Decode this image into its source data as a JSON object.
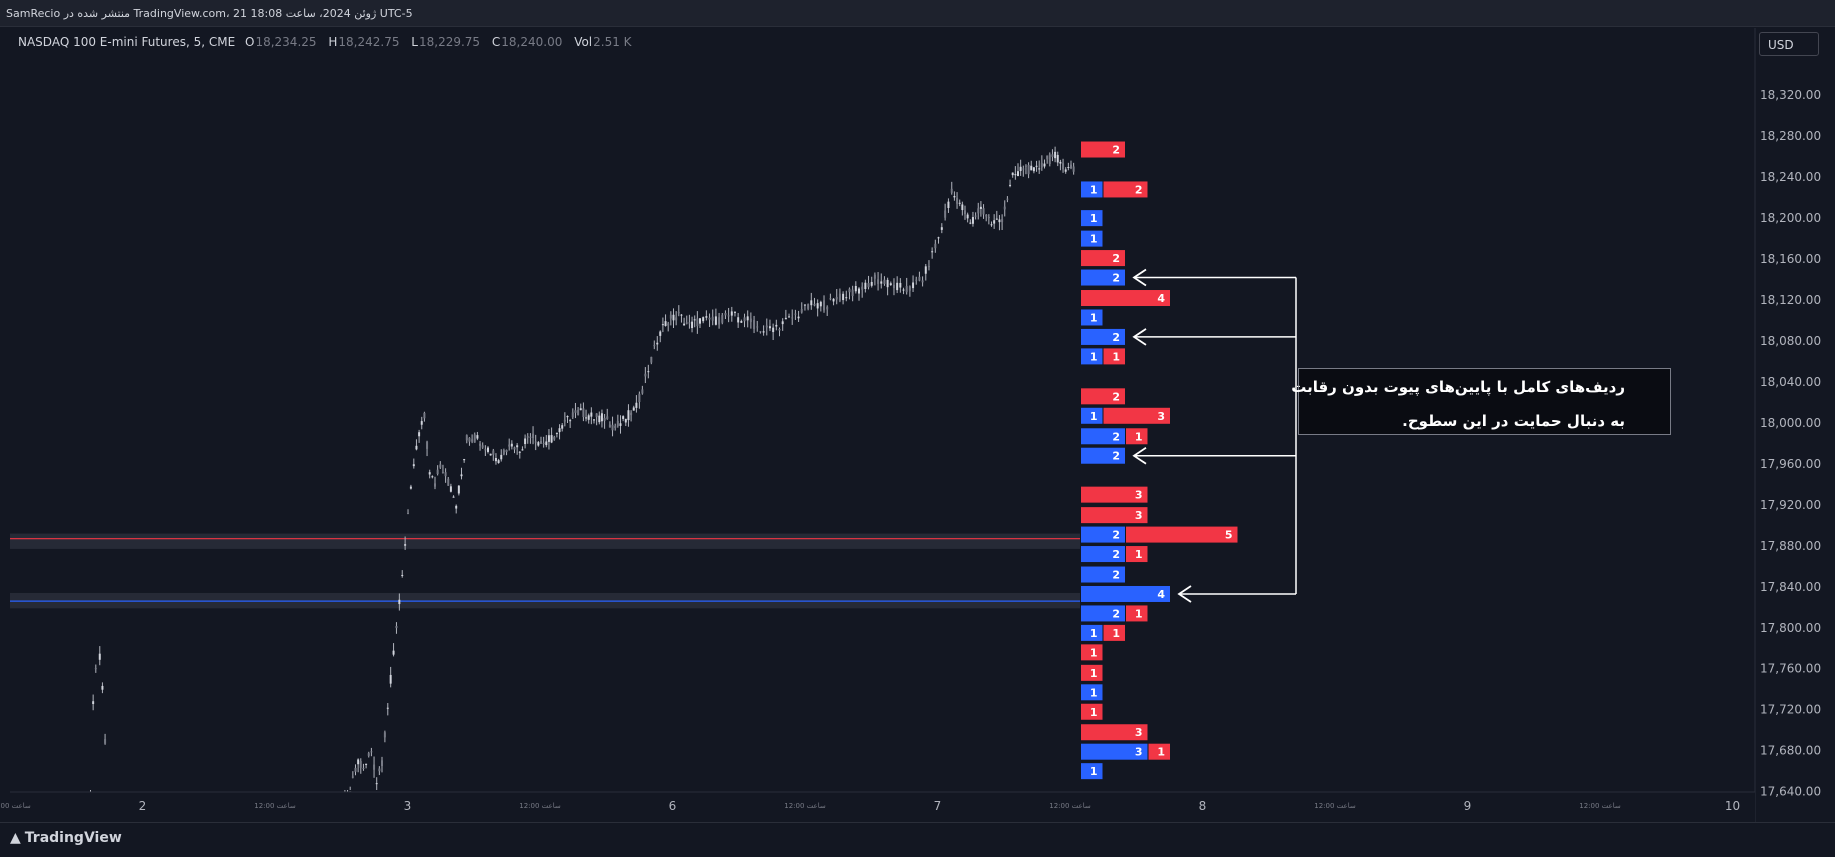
{
  "header": {
    "publish_text": "SamRecio منتشر شده در TradingView.com، 21 ژوئن 2024، ساعت 18:08 UTC-5"
  },
  "legend": {
    "symbol": "NASDAQ 100 E-mini Futures, 5, CME",
    "open_key": "O",
    "open_value": "18,234.25",
    "high_key": "H",
    "high_value": "18,242.75",
    "low_key": "L",
    "low_value": "18,229.75",
    "close_key": "C",
    "close_value": "18,240.00",
    "vol_key": "Vol",
    "vol_value": "2.51 K"
  },
  "currency": "USD",
  "annotation": {
    "line1": "ردیف‌های کامل با پایین‌های پیوت بدون رقابت",
    "line2": "به دنبال حمایت در این سطوح."
  },
  "brand": {
    "name": "TradingView"
  },
  "colors": {
    "background": "#131722",
    "bull": "#2962ff",
    "bear": "#f23645",
    "candle": "#b2b5be",
    "support_red": "#f23645",
    "support_blue": "#2962ff"
  },
  "chart_data": {
    "type": "candlestick",
    "ylim": [
      17620,
      18350
    ],
    "y_ticks": [
      {
        "value": 18320,
        "label": "18,320.00"
      },
      {
        "value": 18280,
        "label": "18,280.00"
      },
      {
        "value": 18240,
        "label": "18,240.00"
      },
      {
        "value": 18200,
        "label": "18,200.00"
      },
      {
        "value": 18160,
        "label": "18,160.00"
      },
      {
        "value": 18120,
        "label": "18,120.00"
      },
      {
        "value": 18080,
        "label": "18,080.00"
      },
      {
        "value": 18040,
        "label": "18,040.00"
      },
      {
        "value": 18000,
        "label": "18,000.00"
      },
      {
        "value": 17960,
        "label": "17,960.00"
      },
      {
        "value": 17920,
        "label": "17,920.00"
      },
      {
        "value": 17880,
        "label": "17,880.00"
      },
      {
        "value": 17840,
        "label": "17,840.00"
      },
      {
        "value": 17800,
        "label": "17,800.00"
      },
      {
        "value": 17760,
        "label": "17,760.00"
      },
      {
        "value": 17720,
        "label": "17,720.00"
      },
      {
        "value": 17680,
        "label": "17,680.00"
      },
      {
        "value": 17640,
        "label": "17,640.00"
      }
    ],
    "x_ticks": [
      {
        "pos": 0.0,
        "label": "ساعت 12:00",
        "small": true
      },
      {
        "pos": 0.5,
        "label": "2",
        "small": false
      },
      {
        "pos": 1.0,
        "label": "ساعت 12:00",
        "small": true
      },
      {
        "pos": 1.5,
        "label": "3",
        "small": false
      },
      {
        "pos": 2.0,
        "label": "ساعت 12:00",
        "small": true
      },
      {
        "pos": 2.5,
        "label": "6",
        "small": false
      },
      {
        "pos": 3.0,
        "label": "ساعت 12:00",
        "small": true
      },
      {
        "pos": 3.5,
        "label": "7",
        "small": false
      },
      {
        "pos": 4.0,
        "label": "ساعت 12:00",
        "small": true
      },
      {
        "pos": 4.5,
        "label": "8",
        "small": false
      },
      {
        "pos": 5.0,
        "label": "ساعت 12:00",
        "small": true
      },
      {
        "pos": 5.5,
        "label": "9",
        "small": false
      },
      {
        "pos": 6.0,
        "label": "ساعت 12:00",
        "small": true
      },
      {
        "pos": 6.5,
        "label": "10",
        "small": false
      }
    ],
    "price_path": [
      [
        0.3,
        17620
      ],
      [
        0.31,
        17730
      ],
      [
        0.32,
        17760
      ],
      [
        0.335,
        17770
      ],
      [
        0.345,
        17740
      ],
      [
        0.355,
        17690
      ],
      [
        0.37,
        17620
      ],
      [
        1.26,
        17620
      ],
      [
        1.29,
        17650
      ],
      [
        1.31,
        17670
      ],
      [
        1.33,
        17660
      ],
      [
        1.36,
        17680
      ],
      [
        1.38,
        17650
      ],
      [
        1.4,
        17670
      ],
      [
        1.52,
        17960
      ],
      [
        1.54,
        17990
      ],
      [
        1.56,
        18005
      ],
      [
        1.58,
        17950
      ],
      [
        1.6,
        17940
      ],
      [
        1.62,
        17960
      ],
      [
        1.64,
        17950
      ],
      [
        1.66,
        17935
      ],
      [
        1.68,
        17920
      ],
      [
        1.7,
        17950
      ],
      [
        1.72,
        17985
      ],
      [
        1.76,
        17985
      ],
      [
        1.8,
        17975
      ],
      [
        1.84,
        17965
      ],
      [
        1.88,
        17980
      ],
      [
        1.92,
        17975
      ],
      [
        1.96,
        17990
      ],
      [
        2.0,
        17980
      ],
      [
        2.04,
        17985
      ],
      [
        2.08,
        17995
      ],
      [
        2.12,
        18010
      ],
      [
        2.16,
        18010
      ],
      [
        2.2,
        18005
      ],
      [
        2.24,
        18005
      ],
      [
        2.28,
        17995
      ],
      [
        2.32,
        18005
      ],
      [
        2.36,
        18015
      ],
      [
        2.45,
        18090
      ],
      [
        2.48,
        18100
      ],
      [
        2.52,
        18105
      ],
      [
        2.56,
        18095
      ],
      [
        2.6,
        18100
      ],
      [
        2.66,
        18100
      ],
      [
        2.72,
        18105
      ],
      [
        2.78,
        18100
      ],
      [
        2.84,
        18090
      ],
      [
        2.9,
        18095
      ],
      [
        2.96,
        18105
      ],
      [
        3.02,
        18115
      ],
      [
        3.08,
        18115
      ],
      [
        3.14,
        18125
      ],
      [
        3.2,
        18130
      ],
      [
        3.26,
        18140
      ],
      [
        3.32,
        18135
      ],
      [
        3.38,
        18130
      ],
      [
        3.44,
        18140
      ],
      [
        3.5,
        18180
      ],
      [
        3.55,
        18225
      ],
      [
        3.58,
        18215
      ],
      [
        3.62,
        18195
      ],
      [
        3.66,
        18210
      ],
      [
        3.7,
        18195
      ],
      [
        3.74,
        18200
      ],
      [
        3.78,
        18240
      ],
      [
        3.82,
        18250
      ],
      [
        3.86,
        18245
      ],
      [
        3.9,
        18255
      ],
      [
        3.94,
        18260
      ],
      [
        3.98,
        18250
      ],
      [
        4.02,
        18245
      ]
    ],
    "support_zones": [
      {
        "price_low": 17877,
        "price_high": 17892,
        "line": 17887,
        "color": "red"
      },
      {
        "price_low": 17819,
        "price_high": 17834,
        "line": 17826,
        "color": "blue"
      }
    ],
    "footprint_rows": [
      {
        "price": 18267,
        "bid": 0,
        "ask": 2
      },
      {
        "price": 18228,
        "bid": 1,
        "ask": 2
      },
      {
        "price": 18200,
        "bid": 1,
        "ask": 0
      },
      {
        "price": 18180,
        "bid": 1,
        "ask": 0
      },
      {
        "price": 18161,
        "bid": 0,
        "ask": 2
      },
      {
        "price": 18142,
        "bid": 2,
        "ask": 0
      },
      {
        "price": 18122,
        "bid": 0,
        "ask": 4
      },
      {
        "price": 18103,
        "bid": 1,
        "ask": 0
      },
      {
        "price": 18084,
        "bid": 2,
        "ask": 0
      },
      {
        "price": 18065,
        "bid": 1,
        "ask": 1
      },
      {
        "price": 18026,
        "bid": 0,
        "ask": 2
      },
      {
        "price": 18007,
        "bid": 1,
        "ask": 3
      },
      {
        "price": 17987,
        "bid": 2,
        "ask": 1
      },
      {
        "price": 17968,
        "bid": 2,
        "ask": 0
      },
      {
        "price": 17930,
        "bid": 0,
        "ask": 3
      },
      {
        "price": 17910,
        "bid": 0,
        "ask": 3
      },
      {
        "price": 17891,
        "bid": 2,
        "ask": 5
      },
      {
        "price": 17872,
        "bid": 2,
        "ask": 1
      },
      {
        "price": 17852,
        "bid": 2,
        "ask": 0
      },
      {
        "price": 17833,
        "bid": 4,
        "ask": 0
      },
      {
        "price": 17814,
        "bid": 2,
        "ask": 1
      },
      {
        "price": 17795,
        "bid": 1,
        "ask": 1
      },
      {
        "price": 17776,
        "bid": 0,
        "ask": 1
      },
      {
        "price": 17756,
        "bid": 0,
        "ask": 1
      },
      {
        "price": 17737,
        "bid": 1,
        "ask": 0
      },
      {
        "price": 17718,
        "bid": 0,
        "ask": 1
      },
      {
        "price": 17698,
        "bid": 0,
        "ask": 3
      },
      {
        "price": 17679,
        "bid": 3,
        "ask": 1
      },
      {
        "price": 17660,
        "bid": 1,
        "ask": 0
      }
    ],
    "arrow_targets": [
      18142,
      18084,
      17968,
      17833
    ]
  }
}
